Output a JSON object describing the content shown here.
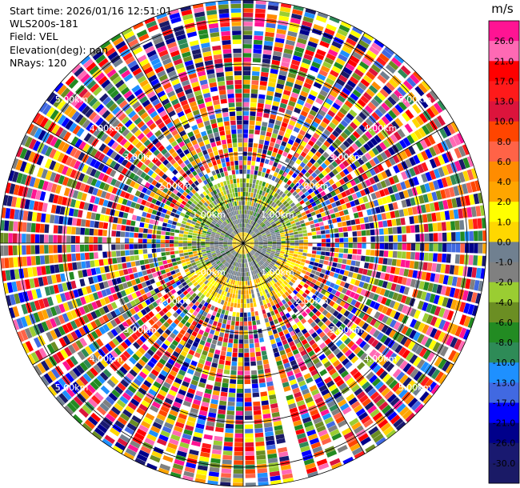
{
  "info": {
    "start_time": "Start time: 2026/01/16 12:51:01",
    "instrument": "WLS200s-181",
    "field": "Field: VEL",
    "elevation": "Elevation(deg): nan",
    "nrays": "NRays: 120"
  },
  "chart_data": {
    "type": "heatmap",
    "projection": "polar (PPI scan)",
    "field": "VEL",
    "nrays": 120,
    "range_rings_km": [
      1,
      2,
      3,
      4,
      5
    ],
    "range_ring_labels": [
      "1.00km",
      "2.00km",
      "3.00km",
      "4.00km",
      "5.00km"
    ],
    "max_range_km": 5.4,
    "blank_azimuth_deg": [
      165,
      168
    ],
    "inner_region": {
      "center_yellow_km": 0.25,
      "gray_band_km": [
        0.3,
        0.75
      ],
      "yellow_green_ring_km": [
        0.75,
        1.45
      ],
      "scatter_start_km": 1.5
    },
    "colorbar": {
      "unit": "m/s",
      "tick_labels": [
        "26.0",
        "21.0",
        "17.0",
        "13.0",
        "10.0",
        "8.0",
        "6.0",
        "4.0",
        "2.0",
        "1.0",
        "0.0",
        "-1.0",
        "-2.0",
        "-4.0",
        "-6.0",
        "-8.0",
        "-10.0",
        "-13.0",
        "-17.0",
        "-21.0",
        "-26.0",
        "-30.0"
      ],
      "colors": [
        "#ff1493",
        "#ff69b4",
        "#ff0000",
        "#ff1a1a",
        "#dc143c",
        "#ff4500",
        "#ff6347",
        "#ff8c00",
        "#ffa500",
        "#ffff00",
        "#ffd700",
        "#708090",
        "#808080",
        "#9acd32",
        "#6b8e23",
        "#228b22",
        "#2e8b57",
        "#1e90ff",
        "#4169e1",
        "#0000ff",
        "#00008b",
        "#191970",
        "#1a1a66"
      ]
    }
  }
}
